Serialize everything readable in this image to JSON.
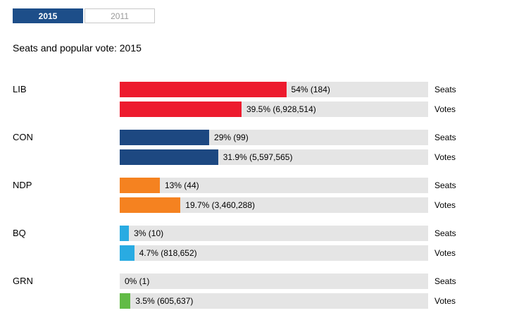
{
  "tabs": [
    {
      "label": "2015",
      "active": true
    },
    {
      "label": "2011",
      "active": false
    }
  ],
  "title": "Seats and popular vote: 2015",
  "chart_data": {
    "type": "bar",
    "orientation": "horizontal",
    "title": "Seats and popular vote: 2015",
    "x_max_percent": 100,
    "track_color": "#e5e5e5",
    "row_labels": {
      "seats": "Seats",
      "votes": "Votes"
    },
    "parties": [
      {
        "code": "LIB",
        "color": "#ed1b2e",
        "seats": {
          "percent": 54,
          "count": 184,
          "label": "54% (184)"
        },
        "votes": {
          "percent": 39.5,
          "count": 6928514,
          "label": "39.5% (6,928,514)"
        }
      },
      {
        "code": "CON",
        "color": "#1d4881",
        "seats": {
          "percent": 29,
          "count": 99,
          "label": "29% (99)"
        },
        "votes": {
          "percent": 31.9,
          "count": 5597565,
          "label": "31.9% (5,597,565)"
        }
      },
      {
        "code": "NDP",
        "color": "#f58220",
        "seats": {
          "percent": 13,
          "count": 44,
          "label": "13% (44)"
        },
        "votes": {
          "percent": 19.7,
          "count": 3460288,
          "label": "19.7% (3,460,288)"
        }
      },
      {
        "code": "BQ",
        "color": "#29abe2",
        "seats": {
          "percent": 3,
          "count": 10,
          "label": "3% (10)"
        },
        "votes": {
          "percent": 4.7,
          "count": 818652,
          "label": "4.7% (818,652)"
        }
      },
      {
        "code": "GRN",
        "color": "#62bb46",
        "seats": {
          "percent": 0,
          "count": 1,
          "label": "0% (1)"
        },
        "votes": {
          "percent": 3.5,
          "count": 605637,
          "label": "3.5% (605,637)"
        }
      }
    ]
  }
}
